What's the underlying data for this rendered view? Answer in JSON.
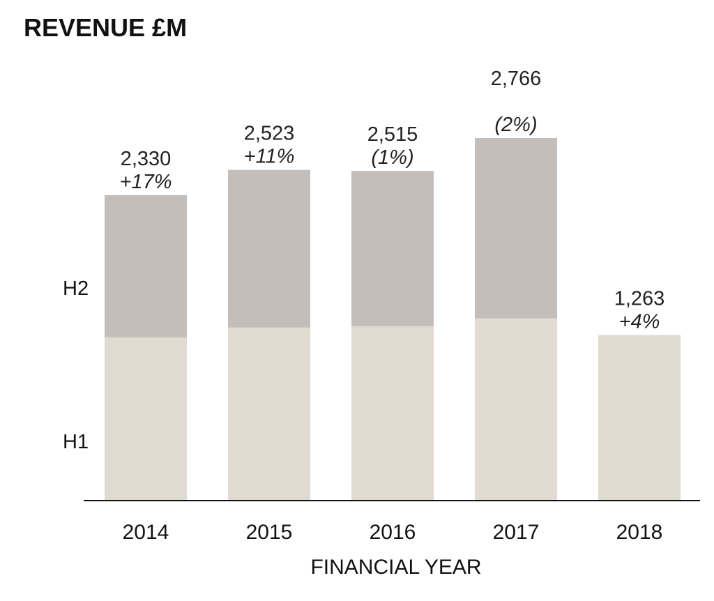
{
  "chart_data": {
    "type": "bar",
    "stacked": true,
    "title": "REVENUE £M",
    "xlabel": "FINANCIAL YEAR",
    "ylabel": "",
    "categories": [
      "2014",
      "2015",
      "2016",
      "2017",
      "2018"
    ],
    "series": [
      {
        "name": "H1",
        "values": [
          1245,
          1320,
          1330,
          1390,
          1263
        ],
        "color": "#e0dad1"
      },
      {
        "name": "H2",
        "values": [
          1085,
          1203,
          1185,
          1376,
          null
        ],
        "color": "#c4bebb"
      }
    ],
    "totals": [
      "2,330",
      "2,523",
      "2,515",
      "2,766",
      "1,263"
    ],
    "growth": [
      "+17%",
      "+11%",
      "(1%)",
      "(2%)",
      "+4%"
    ],
    "ylim": [
      0,
      2766
    ],
    "grid": false,
    "legend": "left"
  }
}
